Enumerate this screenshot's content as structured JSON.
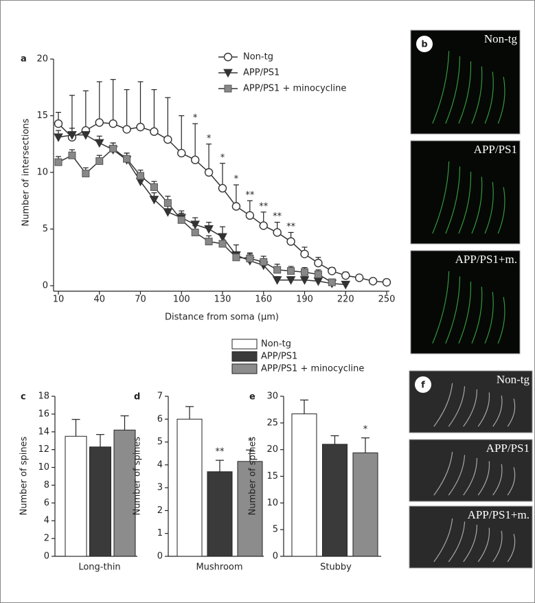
{
  "chart_data": [
    {
      "type": "line",
      "panel": "a",
      "xlabel": "Distance from soma (μm)",
      "ylabel": "Number of intersections",
      "xlim": [
        10,
        250
      ],
      "xticks": [
        10,
        40,
        70,
        100,
        130,
        160,
        190,
        220,
        250
      ],
      "ylim": [
        0,
        20
      ],
      "yticks": [
        0,
        5,
        10,
        15,
        20
      ],
      "x": [
        10,
        20,
        30,
        40,
        50,
        60,
        70,
        80,
        90,
        100,
        110,
        120,
        130,
        140,
        150,
        160,
        170,
        180,
        190,
        200,
        210,
        220,
        230,
        240,
        250
      ],
      "series": [
        {
          "name": "Non-tg",
          "marker": "circle",
          "color": "#ffffff",
          "values": [
            14.3,
            13.1,
            13.7,
            14.4,
            14.3,
            13.8,
            14.0,
            13.6,
            12.9,
            11.7,
            11.1,
            10.0,
            8.6,
            7.0,
            6.2,
            5.3,
            4.7,
            3.9,
            2.8,
            2.0,
            1.3,
            0.9,
            0.7,
            0.4,
            0.3
          ],
          "errors": [
            1.0,
            3.7,
            3.5,
            3.6,
            3.9,
            3.5,
            4.0,
            3.7,
            3.7,
            3.3,
            3.2,
            2.5,
            2.2,
            1.9,
            1.3,
            1.2,
            0.9,
            0.8,
            0.6,
            0.5,
            0.3,
            0.3,
            0.2,
            0.1,
            0.0
          ]
        },
        {
          "name": "APP/PS1",
          "marker": "triangle",
          "color": "#333333",
          "values": [
            13.1,
            13.3,
            13.3,
            12.6,
            12.0,
            11.1,
            9.2,
            7.6,
            6.5,
            6.0,
            5.4,
            5.0,
            4.3,
            2.7,
            2.2,
            1.8,
            0.5,
            0.5,
            0.5,
            0.4,
            0.2,
            0.1,
            null,
            null,
            null
          ],
          "errors": [
            0.6,
            0.6,
            0.6,
            0.6,
            0.6,
            0.6,
            0.6,
            0.6,
            0.6,
            0.6,
            0.6,
            0.6,
            0.9,
            0.9,
            0.6,
            0.5,
            0.3,
            0.3,
            0.3,
            0.3,
            0.2,
            0.1,
            null,
            null,
            null
          ]
        },
        {
          "name": "APP/PS1 + minocycline",
          "marker": "square",
          "color": "#888888",
          "values": [
            10.9,
            11.5,
            9.9,
            11.0,
            12.1,
            11.2,
            9.7,
            8.7,
            7.3,
            5.8,
            4.7,
            3.9,
            3.7,
            2.5,
            2.4,
            2.1,
            1.4,
            1.3,
            1.2,
            1.0,
            0.3,
            null,
            null,
            null,
            null
          ],
          "errors": [
            0.5,
            0.5,
            0.5,
            0.5,
            0.5,
            0.5,
            0.5,
            0.5,
            0.6,
            0.6,
            0.6,
            0.5,
            0.6,
            0.5,
            0.5,
            0.5,
            0.5,
            0.4,
            0.4,
            0.4,
            0.3,
            null,
            null,
            null,
            null
          ]
        }
      ],
      "annotations": [
        {
          "text": "*",
          "x": 110
        },
        {
          "text": "*",
          "x": 120
        },
        {
          "text": "*",
          "x": 130
        },
        {
          "text": "*",
          "x": 140
        },
        {
          "text": "**",
          "x": 150
        },
        {
          "text": "**",
          "x": 160
        },
        {
          "text": "**",
          "x": 170
        },
        {
          "text": "**",
          "x": 180
        }
      ]
    },
    {
      "type": "bar",
      "panel": "c",
      "xlabel": "Long-thin",
      "ylabel": "Number of spines",
      "ylim": [
        0,
        18
      ],
      "yticks": [
        0,
        2,
        4,
        6,
        8,
        10,
        12,
        14,
        16,
        18
      ],
      "values": [
        13.5,
        12.3,
        14.2
      ],
      "errors": [
        1.9,
        1.4,
        1.6
      ],
      "annotations": []
    },
    {
      "type": "bar",
      "panel": "d",
      "xlabel": "Mushroom",
      "ylabel": "Number of spines",
      "ylim": [
        0,
        7
      ],
      "yticks": [
        0,
        1,
        2,
        3,
        4,
        5,
        6,
        7
      ],
      "values": [
        6.0,
        3.7,
        4.15
      ],
      "errors": [
        0.55,
        0.5,
        0.5
      ],
      "annotations": [
        {
          "bar": 1,
          "text": "**"
        },
        {
          "bar": 2,
          "text": "*"
        }
      ]
    },
    {
      "type": "bar",
      "panel": "e",
      "xlabel": "Stubby",
      "ylabel": "Number of spines",
      "ylim": [
        0,
        30
      ],
      "yticks": [
        0,
        5,
        10,
        15,
        20,
        25,
        30
      ],
      "values": [
        26.7,
        21.0,
        19.4
      ],
      "errors": [
        2.6,
        1.6,
        2.8
      ],
      "annotations": [
        {
          "bar": 2,
          "text": "*"
        }
      ]
    }
  ],
  "bar_legend": [
    {
      "name": "Non-tg",
      "color": "#ffffff"
    },
    {
      "name": "APP/PS1",
      "color": "#3a3a3a"
    },
    {
      "name": "APP/PS1 + minocycline",
      "color": "#8c8c8c"
    }
  ],
  "micrographs": [
    {
      "panel": "b",
      "labels": [
        "Non-tg",
        "APP/PS1",
        "APP/PS1+m."
      ]
    },
    {
      "panel": "f",
      "labels": [
        "Non-tg",
        "APP/PS1",
        "APP/PS1+m."
      ]
    }
  ]
}
